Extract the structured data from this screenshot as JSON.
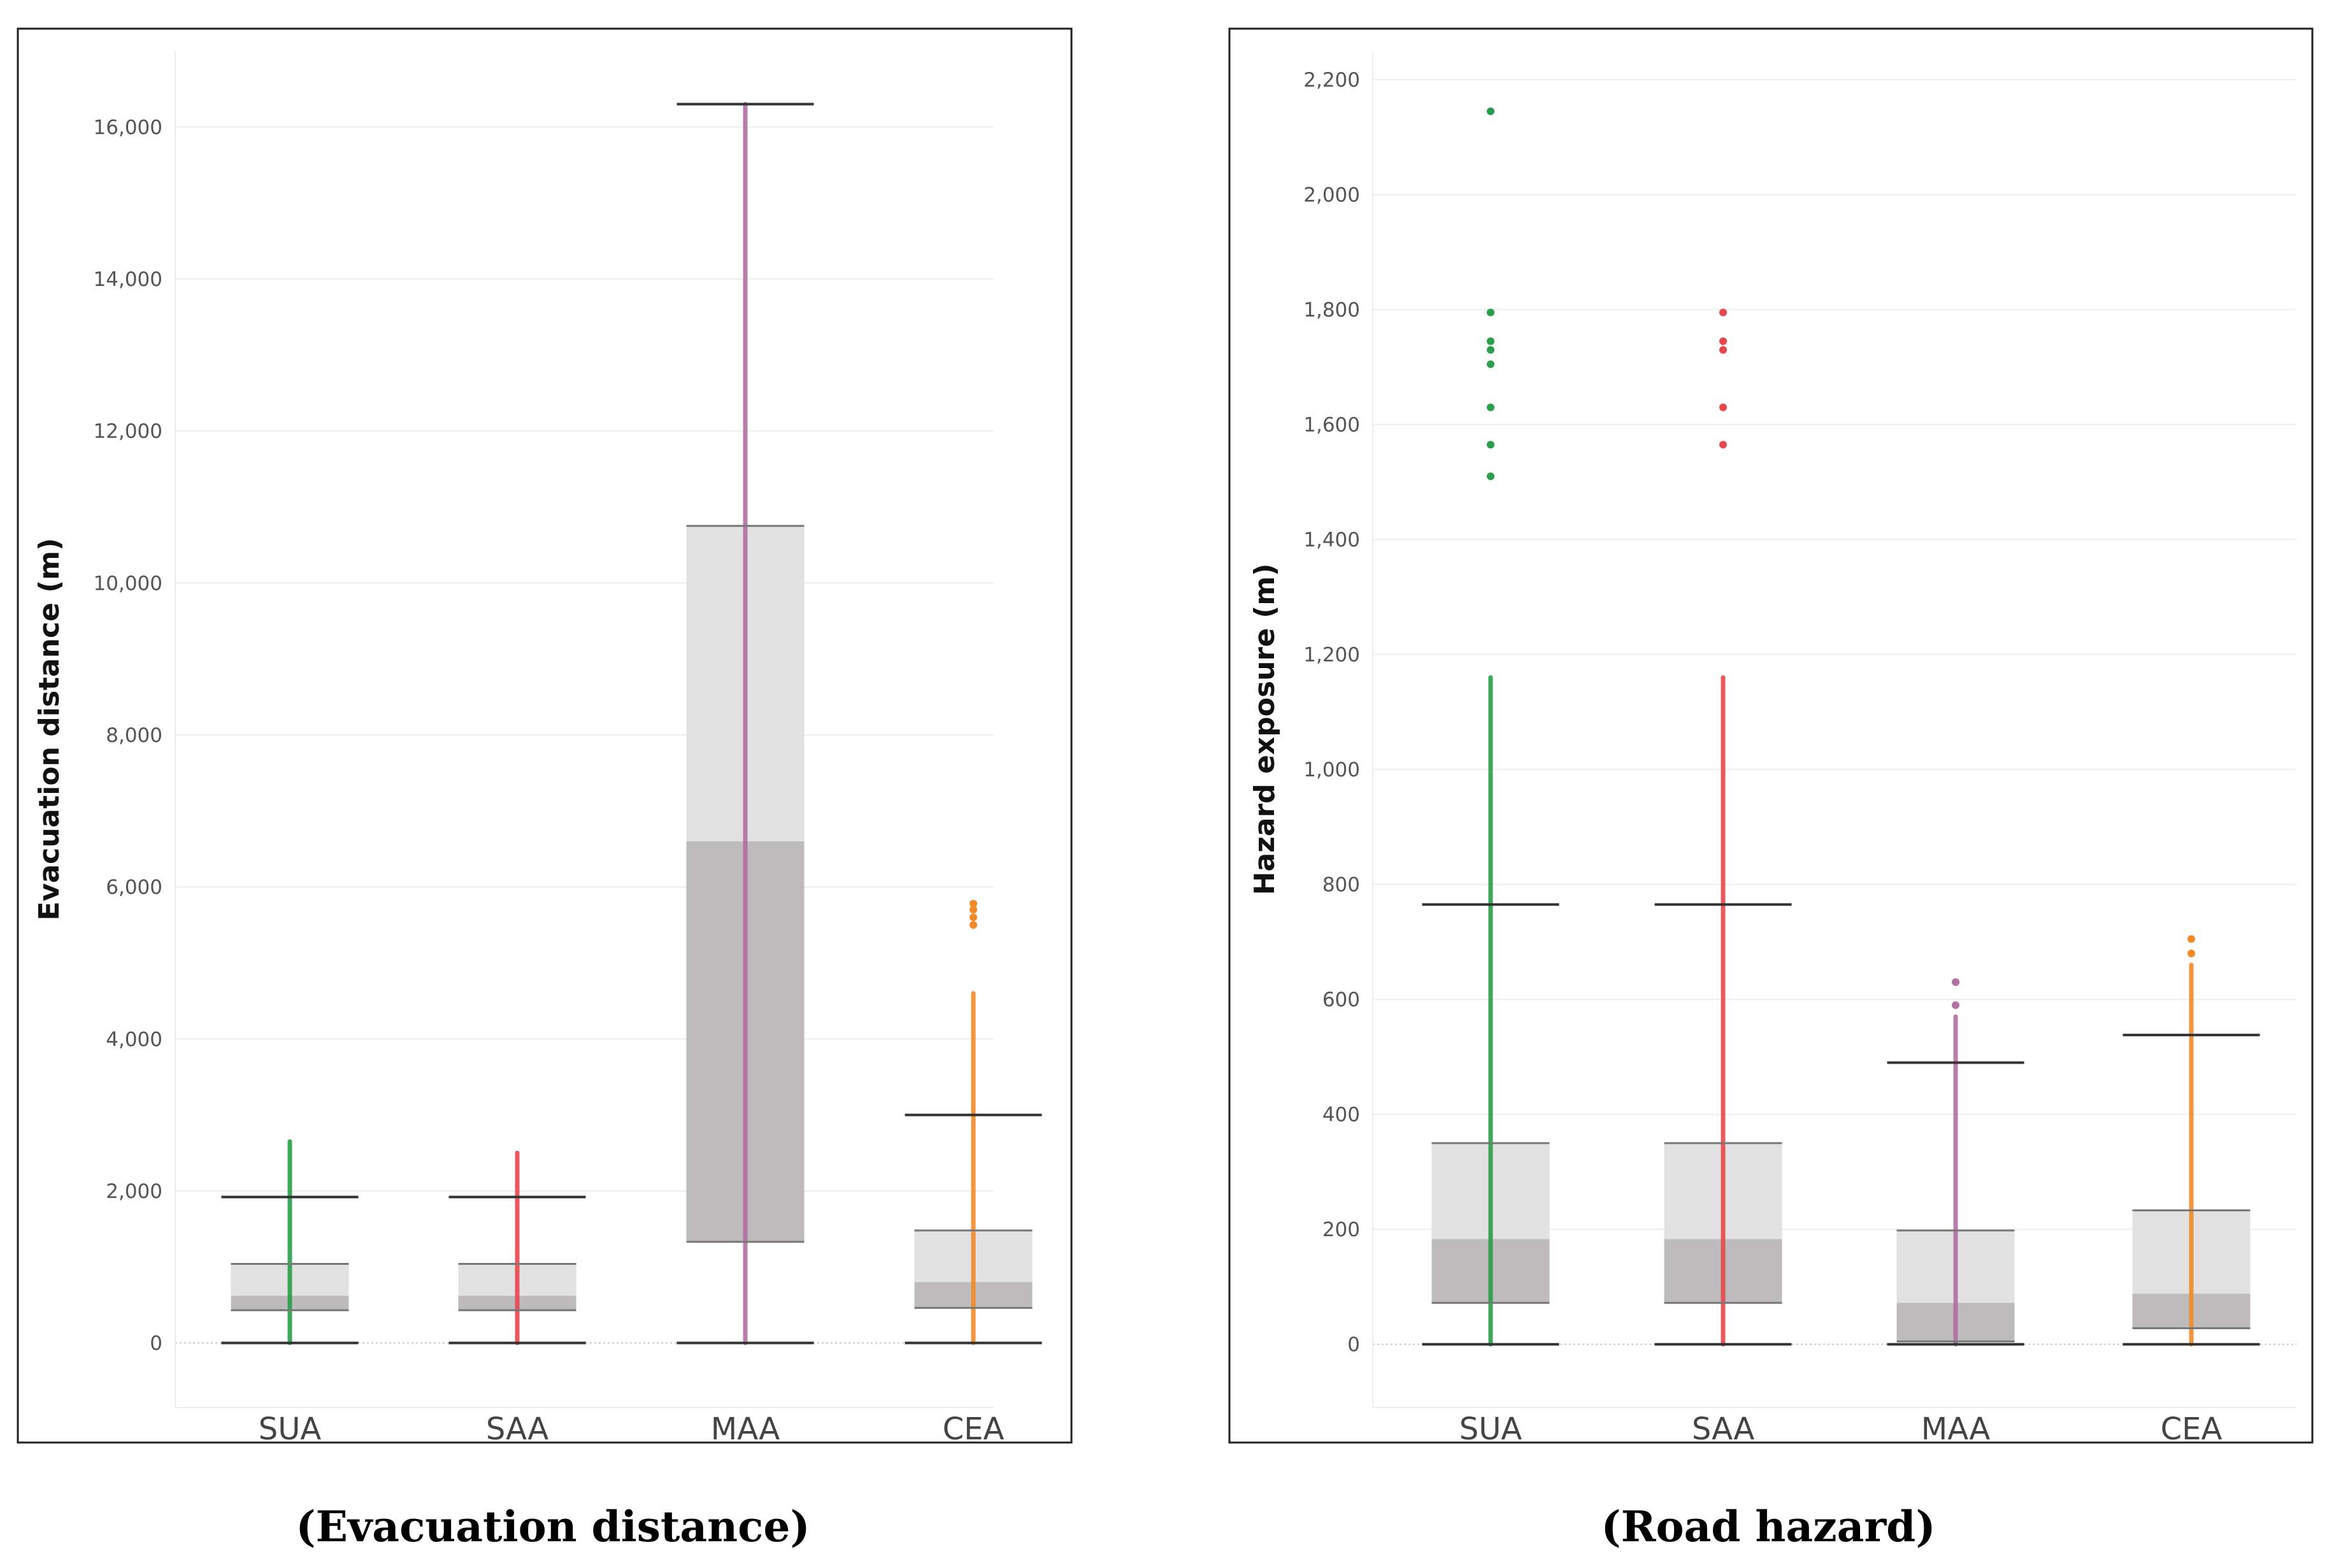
{
  "chart_data": [
    {
      "type": "box",
      "caption": "(Evacuation distance)",
      "ylabel": "Evacuation distance (m)",
      "ylim": [
        -850,
        17000
      ],
      "yticks": [
        0,
        2000,
        4000,
        6000,
        8000,
        10000,
        12000,
        14000,
        16000
      ],
      "ytick_labels": [
        "0",
        "2,000",
        "4,000",
        "6,000",
        "8,000",
        "10,000",
        "12,000",
        "14,000",
        "16,000"
      ],
      "categories": [
        "SUA",
        "SAA",
        "MAA",
        "CEA"
      ],
      "colors": {
        "SUA": "#2a9e4c",
        "SAA": "#e8474c",
        "MAA": "#b26fa2",
        "CEA": "#f28a2a"
      },
      "boxes": [
        {
          "category": "SUA",
          "whisker_low": 0,
          "q1": 430,
          "median": 620,
          "q3": 1040,
          "whisker_high": 1920,
          "data_max": 2650,
          "outliers": []
        },
        {
          "category": "SAA",
          "whisker_low": 0,
          "q1": 430,
          "median": 620,
          "q3": 1040,
          "whisker_high": 1920,
          "data_max": 2500,
          "outliers": []
        },
        {
          "category": "MAA",
          "whisker_low": 0,
          "q1": 1330,
          "median": 6600,
          "q3": 10750,
          "whisker_high": 16300,
          "data_max": 16300,
          "outliers": []
        },
        {
          "category": "CEA",
          "whisker_low": 0,
          "q1": 460,
          "median": 800,
          "q3": 1480,
          "whisker_high": 3000,
          "data_max": 4600,
          "outliers": [
            5500,
            5600,
            5700,
            5780
          ]
        }
      ]
    },
    {
      "type": "box",
      "caption": "(Road hazard)",
      "ylabel": "Hazard exposure (m)",
      "ylim": [
        -110,
        2250
      ],
      "yticks": [
        0,
        200,
        400,
        600,
        800,
        1000,
        1200,
        1400,
        1600,
        1800,
        2000,
        2200
      ],
      "ytick_labels": [
        "0",
        "200",
        "400",
        "600",
        "800",
        "1,000",
        "1,200",
        "1,400",
        "1,600",
        "1,800",
        "2,000",
        "2,200"
      ],
      "categories": [
        "SUA",
        "SAA",
        "MAA",
        "CEA"
      ],
      "colors": {
        "SUA": "#2a9e4c",
        "SAA": "#e8474c",
        "MAA": "#b26fa2",
        "CEA": "#f28a2a"
      },
      "boxes": [
        {
          "category": "SUA",
          "whisker_low": 0,
          "q1": 72,
          "median": 183,
          "q3": 350,
          "whisker_high": 765,
          "data_max": 1160,
          "outliers": [
            1510,
            1565,
            1630,
            1705,
            1730,
            1745,
            1795,
            2145
          ]
        },
        {
          "category": "SAA",
          "whisker_low": 0,
          "q1": 72,
          "median": 183,
          "q3": 350,
          "whisker_high": 765,
          "data_max": 1160,
          "outliers": [
            1565,
            1630,
            1730,
            1745,
            1795
          ]
        },
        {
          "category": "MAA",
          "whisker_low": 0,
          "q1": 5,
          "median": 72,
          "q3": 198,
          "whisker_high": 490,
          "data_max": 570,
          "outliers": [
            590,
            630
          ]
        },
        {
          "category": "CEA",
          "whisker_low": 0,
          "q1": 28,
          "median": 88,
          "q3": 233,
          "whisker_high": 538,
          "data_max": 660,
          "outliers": [
            680,
            705
          ]
        }
      ]
    }
  ]
}
